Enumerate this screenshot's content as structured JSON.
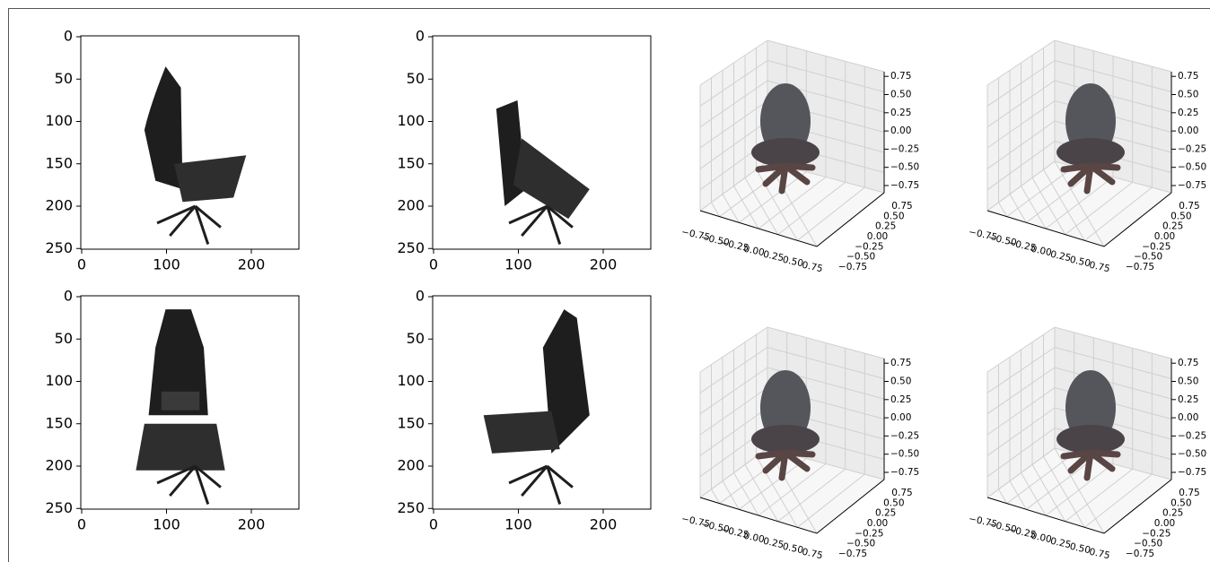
{
  "panels": [
    {
      "kind": "image",
      "xticks": [
        "0",
        "100",
        "200"
      ],
      "yticks": [
        "0",
        "50",
        "100",
        "150",
        "200",
        "250"
      ]
    },
    {
      "kind": "image",
      "xticks": [
        "0",
        "100",
        "200"
      ],
      "yticks": [
        "0",
        "50",
        "100",
        "150",
        "200",
        "250"
      ]
    },
    {
      "kind": "3d",
      "xticks": [
        "−0.75",
        "−0.50",
        "−0.25",
        "0.00",
        "0.25",
        "0.50",
        "0.75"
      ],
      "yticks": [
        "−0.75",
        "−0.50",
        "−0.25",
        "0.00",
        "0.25",
        "0.50",
        "0.75"
      ],
      "zticks": [
        "−0.75",
        "−0.50",
        "−0.25",
        "0.00",
        "0.25",
        "0.50",
        "0.75"
      ]
    },
    {
      "kind": "3d",
      "xticks": [
        "−0.75",
        "−0.50",
        "−0.25",
        "0.00",
        "0.25",
        "0.50",
        "0.75"
      ],
      "yticks": [
        "−0.75",
        "−0.50",
        "−0.25",
        "0.00",
        "0.25",
        "0.50",
        "0.75"
      ],
      "zticks": [
        "−0.75",
        "−0.50",
        "−0.25",
        "0.00",
        "0.25",
        "0.50",
        "0.75"
      ]
    },
    {
      "kind": "image",
      "xticks": [
        "0",
        "100",
        "200"
      ],
      "yticks": [
        "0",
        "50",
        "100",
        "150",
        "200",
        "250"
      ]
    },
    {
      "kind": "image",
      "xticks": [
        "0",
        "100",
        "200"
      ],
      "yticks": [
        "0",
        "50",
        "100",
        "150",
        "200",
        "250"
      ]
    },
    {
      "kind": "3d",
      "xticks": [
        "−0.75",
        "−0.50",
        "−0.25",
        "0.00",
        "0.25",
        "0.50",
        "0.75"
      ],
      "yticks": [
        "−0.75",
        "−0.50",
        "−0.25",
        "0.00",
        "0.25",
        "0.50",
        "0.75"
      ],
      "zticks": [
        "−0.75",
        "−0.50",
        "−0.25",
        "0.00",
        "0.25",
        "0.50",
        "0.75"
      ]
    },
    {
      "kind": "3d",
      "xticks": [
        "−0.75",
        "−0.50",
        "−0.25",
        "0.00",
        "0.25",
        "0.50",
        "0.75"
      ],
      "yticks": [
        "−0.75",
        "−0.50",
        "−0.25",
        "0.00",
        "0.25",
        "0.50",
        "0.75"
      ],
      "zticks": [
        "−0.75",
        "−0.50",
        "−0.25",
        "0.00",
        "0.25",
        "0.50",
        "0.75"
      ]
    }
  ]
}
